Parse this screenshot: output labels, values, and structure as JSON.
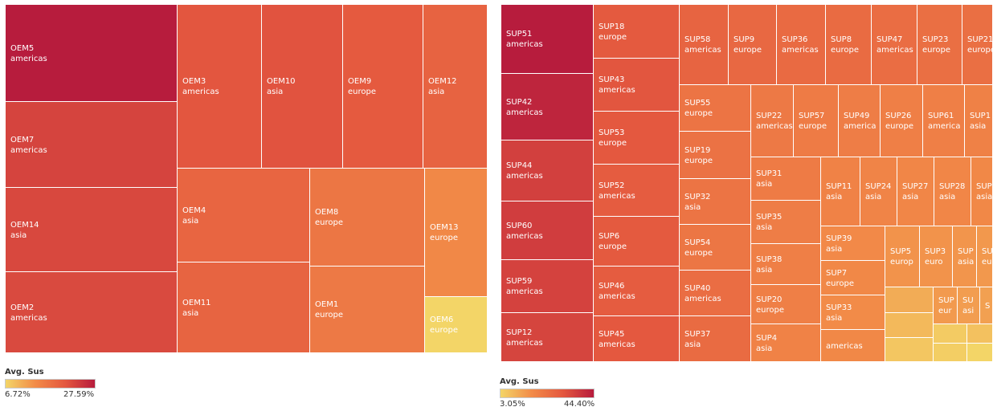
{
  "chart_data": [
    {
      "type": "treemap",
      "legend": {
        "title": "Avg. Sus",
        "min_label": "6.72%",
        "max_label": "27.59%"
      },
      "tiles": [
        {
          "name": "OEM5",
          "region": "americas",
          "value": 27.59
        },
        {
          "name": "OEM7",
          "region": "americas",
          "value": 23.4
        },
        {
          "name": "OEM14",
          "region": "asia",
          "value": 23.0
        },
        {
          "name": "OEM2",
          "region": "americas",
          "value": 22.8
        },
        {
          "name": "OEM3",
          "region": "americas",
          "value": 21.5
        },
        {
          "name": "OEM10",
          "region": "asia",
          "value": 21.8
        },
        {
          "name": "OEM9",
          "region": "europe",
          "value": 21.0
        },
        {
          "name": "OEM12",
          "region": "asia",
          "value": 19.8
        },
        {
          "name": "OEM4",
          "region": "asia",
          "value": 19.5
        },
        {
          "name": "OEM8",
          "region": "europe",
          "value": 17.0
        },
        {
          "name": "OEM13",
          "region": "europe",
          "value": 14.5
        },
        {
          "name": "OEM11",
          "region": "asia",
          "value": 19.6
        },
        {
          "name": "OEM1",
          "region": "europe",
          "value": 16.6
        },
        {
          "name": "OEM6",
          "region": "europe",
          "value": 6.72
        }
      ]
    },
    {
      "type": "treemap",
      "legend": {
        "title": "Avg. Sus",
        "min_label": "3.05%",
        "max_label": "44.40%"
      },
      "tiles": [
        {
          "name": "SUP51",
          "region": "americas",
          "value": 44.4
        },
        {
          "name": "SUP42",
          "region": "americas",
          "value": 42.5
        },
        {
          "name": "SUP44",
          "region": "americas",
          "value": 37.0
        },
        {
          "name": "SUP60",
          "region": "americas",
          "value": 37.5
        },
        {
          "name": "SUP59",
          "region": "americas",
          "value": 36.5
        },
        {
          "name": "SUP12",
          "region": "americas",
          "value": 36.0
        },
        {
          "name": "SUP18",
          "region": "europe",
          "value": 31.5
        },
        {
          "name": "SUP43",
          "region": "americas",
          "value": 32.5
        },
        {
          "name": "SUP53",
          "region": "europe",
          "value": 32.0
        },
        {
          "name": "SUP52",
          "region": "americas",
          "value": 31.0
        },
        {
          "name": "SUP6",
          "region": "europe",
          "value": 31.5
        },
        {
          "name": "SUP46",
          "region": "americas",
          "value": 31.0
        },
        {
          "name": "SUP45",
          "region": "americas",
          "value": 32.0
        },
        {
          "name": "SUP58",
          "region": "americas",
          "value": 28.5
        },
        {
          "name": "SUP9",
          "region": "europe",
          "value": 27.5
        },
        {
          "name": "SUP36",
          "region": "americas",
          "value": 27.0
        },
        {
          "name": "SUP8",
          "region": "europe",
          "value": 26.5
        },
        {
          "name": "SUP47",
          "region": "americas",
          "value": 26.0
        },
        {
          "name": "SUP23",
          "region": "europe",
          "value": 25.5
        },
        {
          "name": "SUP21",
          "region": "europe",
          "value": 25.5
        },
        {
          "name": "SUP55",
          "region": "europe",
          "value": 24.0
        },
        {
          "name": "SUP19",
          "region": "europe",
          "value": 24.5
        },
        {
          "name": "SUP32",
          "region": "asia",
          "value": 24.0
        },
        {
          "name": "SUP54",
          "region": "europe",
          "value": 23.5
        },
        {
          "name": "SUP40",
          "region": "americas",
          "value": 26.0
        },
        {
          "name": "SUP37",
          "region": "asia",
          "value": 26.5
        },
        {
          "name": "SUP22",
          "region": "americas",
          "value": 22.5
        },
        {
          "name": "SUP57",
          "region": "europe",
          "value": 22.0
        },
        {
          "name": "SUP49",
          "region": "america",
          "value": 21.5
        },
        {
          "name": "SUP26",
          "region": "europe",
          "value": 21.0
        },
        {
          "name": "SUP61",
          "region": "america",
          "value": 21.0
        },
        {
          "name": "SUP1",
          "region": "asia",
          "value": 20.5
        },
        {
          "name": "SUP31",
          "region": "asia",
          "value": 22.0
        },
        {
          "name": "SUP35",
          "region": "asia",
          "value": 21.5
        },
        {
          "name": "SUP38",
          "region": "asia",
          "value": 21.0
        },
        {
          "name": "SUP20",
          "region": "europe",
          "value": 21.0
        },
        {
          "name": "SUP4",
          "region": "asia",
          "value": 20.0
        },
        {
          "name": "SUP11",
          "region": "asia",
          "value": 20.0
        },
        {
          "name": "SUP24",
          "region": "asia",
          "value": 19.5
        },
        {
          "name": "SUP27",
          "region": "asia",
          "value": 19.0
        },
        {
          "name": "SUP28",
          "region": "asia",
          "value": 19.0
        },
        {
          "name": "SUP",
          "region": "asia",
          "value": 18.5
        },
        {
          "name": "SUP39",
          "region": "asia",
          "value": 18.0
        },
        {
          "name": "SUP7",
          "region": "europe",
          "value": 18.5
        },
        {
          "name": "SUP33",
          "region": "asia",
          "value": 17.5
        },
        {
          "name": "",
          "region": "americas",
          "value": 18.5
        },
        {
          "name": "SUP5",
          "region": "europ",
          "value": 16.0
        },
        {
          "name": "SUP3",
          "region": "euro",
          "value": 16.0
        },
        {
          "name": "SUP",
          "region": "asia",
          "value": 15.5
        },
        {
          "name": "SU",
          "region": "eu",
          "value": 15.0
        },
        {
          "name": "",
          "region": "",
          "value": 11.0
        },
        {
          "name": "SUP",
          "region": "eur",
          "value": 14.5
        },
        {
          "name": "SU",
          "region": "asi",
          "value": 14.0
        },
        {
          "name": "S",
          "region": "",
          "value": 13.5
        },
        {
          "name": "",
          "region": "",
          "value": 8.5
        },
        {
          "name": "",
          "region": "",
          "value": 6.0
        },
        {
          "name": "",
          "region": "",
          "value": 5.0
        },
        {
          "name": "",
          "region": "",
          "value": 7.0
        },
        {
          "name": "",
          "region": "",
          "value": 4.5
        },
        {
          "name": "",
          "region": "",
          "value": 3.05
        }
      ]
    }
  ]
}
